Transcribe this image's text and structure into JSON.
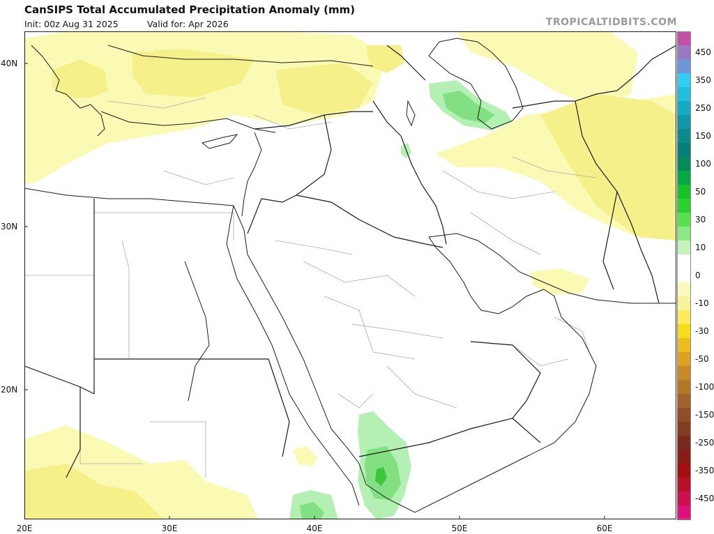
{
  "header": {
    "title": "CanSIPS Total Accumulated Precipitation Anomaly (mm)",
    "init": "Init: 00z Aug 31 2025",
    "valid": "Valid for: Apr 2026",
    "brand": "TROPICALTIDBITS.COM"
  },
  "map": {
    "x_ticks": [
      "20E",
      "30E",
      "40E",
      "50E",
      "60E"
    ],
    "y_ticks": [
      "40N",
      "30N",
      "20N"
    ],
    "colors": {
      "land_bg": "#ffffff",
      "border": "#1a1a1a",
      "province": "#aaaaaa",
      "dry_light": "#fafab4",
      "dry_mid": "#f6f08a",
      "wet_light": "#b4f0b4",
      "wet_mid": "#82e082",
      "wet_dark": "#3cc83c"
    }
  },
  "colorbar": {
    "segments": [
      {
        "label": "",
        "color": "#c44fa8"
      },
      {
        "label": "450",
        "color": "#9a78c2"
      },
      {
        "label": "",
        "color": "#6f96d6"
      },
      {
        "label": "350",
        "color": "#33ccf4"
      },
      {
        "label": "",
        "color": "#22bede"
      },
      {
        "label": "250",
        "color": "#16aac4"
      },
      {
        "label": "",
        "color": "#1098a8"
      },
      {
        "label": "150",
        "color": "#0c8a8c"
      },
      {
        "label": "",
        "color": "#087e78"
      },
      {
        "label": "100",
        "color": "#058a5c"
      },
      {
        "label": "",
        "color": "#05a844"
      },
      {
        "label": "50",
        "color": "#18c02a"
      },
      {
        "label": "",
        "color": "#2cd032"
      },
      {
        "label": "30",
        "color": "#58e050"
      },
      {
        "label": "",
        "color": "#8ce884"
      },
      {
        "label": "10",
        "color": "#c4f2bc"
      },
      {
        "label": "",
        "color": "#ffffff"
      },
      {
        "label": "0",
        "color": "#ffffff"
      },
      {
        "label": "",
        "color": "#fafabe"
      },
      {
        "label": "-10",
        "color": "#f8f49a"
      },
      {
        "label": "",
        "color": "#fcec5c"
      },
      {
        "label": "-30",
        "color": "#f8dc1c"
      },
      {
        "label": "",
        "color": "#ecbc20"
      },
      {
        "label": "-50",
        "color": "#dca224"
      },
      {
        "label": "",
        "color": "#c88a28"
      },
      {
        "label": "-100",
        "color": "#b4782a"
      },
      {
        "label": "",
        "color": "#a0642a"
      },
      {
        "label": "-150",
        "color": "#904e26"
      },
      {
        "label": "",
        "color": "#843c22"
      },
      {
        "label": "-250",
        "color": "#7c2a1e"
      },
      {
        "label": "",
        "color": "#881c18"
      },
      {
        "label": "-350",
        "color": "#a01010"
      },
      {
        "label": "",
        "color": "#b8102a"
      },
      {
        "label": "-450",
        "color": "#cc1050"
      },
      {
        "label": "",
        "color": "#e0107a"
      }
    ]
  }
}
